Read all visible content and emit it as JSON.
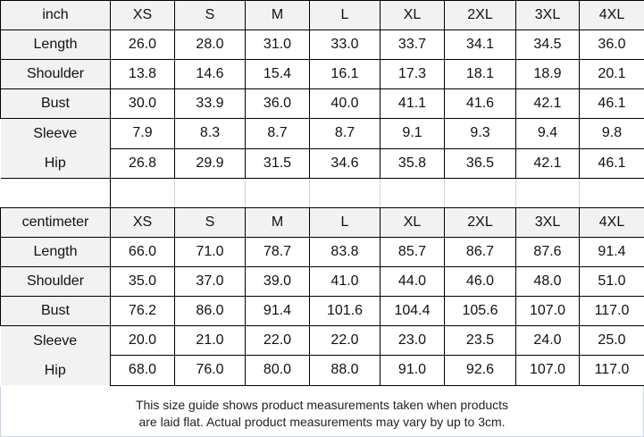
{
  "sizes": [
    "XS",
    "S",
    "M",
    "L",
    "XL",
    "2XL",
    "3XL",
    "4XL"
  ],
  "inch": {
    "unit": "inch",
    "rows": [
      {
        "label": "Length",
        "values": [
          "26.0",
          "28.0",
          "31.0",
          "33.0",
          "33.7",
          "34.1",
          "34.5",
          "36.0"
        ]
      },
      {
        "label": "Shoulder",
        "values": [
          "13.8",
          "14.6",
          "15.4",
          "16.1",
          "17.3",
          "18.1",
          "18.9",
          "20.1"
        ]
      },
      {
        "label": "Bust",
        "values": [
          "30.0",
          "33.9",
          "36.0",
          "40.0",
          "41.1",
          "41.6",
          "42.1",
          "46.1"
        ]
      },
      {
        "label": "Sleeve",
        "values": [
          "7.9",
          "8.3",
          "8.7",
          "8.7",
          "9.1",
          "9.3",
          "9.4",
          "9.8"
        ]
      },
      {
        "label": "Hip",
        "values": [
          "26.8",
          "29.9",
          "31.5",
          "34.6",
          "35.8",
          "36.5",
          "42.1",
          "46.1"
        ]
      }
    ]
  },
  "cm": {
    "unit": "centimeter",
    "rows": [
      {
        "label": "Length",
        "values": [
          "66.0",
          "71.0",
          "78.7",
          "83.8",
          "85.7",
          "86.7",
          "87.6",
          "91.4"
        ]
      },
      {
        "label": "Shoulder",
        "values": [
          "35.0",
          "37.0",
          "39.0",
          "41.0",
          "44.0",
          "46.0",
          "48.0",
          "51.0"
        ]
      },
      {
        "label": "Bust",
        "values": [
          "76.2",
          "86.0",
          "91.4",
          "101.6",
          "104.4",
          "105.6",
          "107.0",
          "117.0"
        ]
      },
      {
        "label": "Sleeve",
        "values": [
          "20.0",
          "21.0",
          "22.0",
          "22.0",
          "23.0",
          "23.5",
          "24.0",
          "25.0"
        ]
      },
      {
        "label": "Hip",
        "values": [
          "68.0",
          "76.0",
          "80.0",
          "88.0",
          "91.0",
          "92.6",
          "107.0",
          "117.0"
        ]
      }
    ]
  },
  "footer": {
    "line1": "This size guide shows product measurements taken when products",
    "line2": "are laid flat. Actual product measurements may vary by up to 3cm."
  }
}
